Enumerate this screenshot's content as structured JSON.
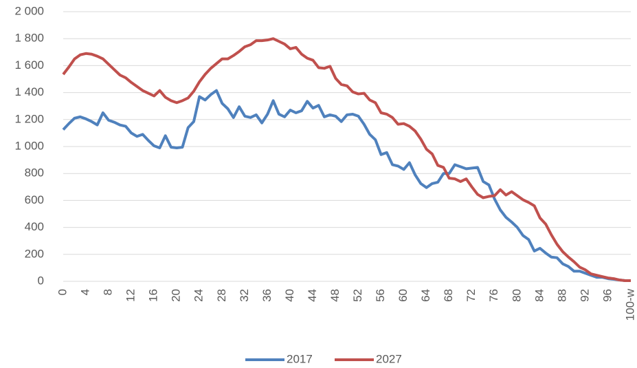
{
  "chart_data": {
    "type": "line",
    "categories": [
      "0",
      null,
      null,
      null,
      "4",
      null,
      null,
      null,
      "8",
      null,
      null,
      null,
      "12",
      null,
      null,
      null,
      "16",
      null,
      null,
      null,
      "20",
      null,
      null,
      null,
      "24",
      null,
      null,
      null,
      "28",
      null,
      null,
      null,
      "32",
      null,
      null,
      null,
      "36",
      null,
      null,
      null,
      "40",
      null,
      null,
      null,
      "44",
      null,
      null,
      null,
      "48",
      null,
      null,
      null,
      "52",
      null,
      null,
      null,
      "56",
      null,
      null,
      null,
      "60",
      null,
      null,
      null,
      "64",
      null,
      null,
      null,
      "68",
      null,
      null,
      null,
      "72",
      null,
      null,
      null,
      "76",
      null,
      null,
      null,
      "80",
      null,
      null,
      null,
      "84",
      null,
      null,
      null,
      "88",
      null,
      null,
      null,
      "92",
      null,
      null,
      null,
      "96",
      null,
      null,
      null,
      "100-w"
    ],
    "series": [
      {
        "name": "2017",
        "color": "#4f81bd",
        "values": [
          1125,
          1170,
          1210,
          1220,
          1205,
          1185,
          1160,
          1250,
          1195,
          1180,
          1160,
          1150,
          1100,
          1075,
          1090,
          1045,
          1005,
          990,
          1080,
          995,
          990,
          995,
          1140,
          1185,
          1370,
          1345,
          1385,
          1415,
          1320,
          1280,
          1215,
          1295,
          1225,
          1215,
          1235,
          1175,
          1240,
          1340,
          1240,
          1220,
          1270,
          1250,
          1265,
          1335,
          1285,
          1305,
          1220,
          1235,
          1225,
          1185,
          1235,
          1240,
          1225,
          1165,
          1090,
          1050,
          940,
          955,
          865,
          855,
          830,
          880,
          790,
          725,
          695,
          725,
          735,
          800,
          800,
          865,
          850,
          835,
          840,
          845,
          740,
          715,
          610,
          530,
          475,
          440,
          400,
          340,
          310,
          225,
          245,
          210,
          180,
          175,
          130,
          110,
          75,
          75,
          60,
          45,
          30,
          30,
          20,
          15,
          10,
          5,
          5
        ]
      },
      {
        "name": "2027",
        "color": "#c0504d",
        "values": [
          1535,
          1590,
          1650,
          1680,
          1690,
          1685,
          1670,
          1650,
          1610,
          1570,
          1530,
          1510,
          1475,
          1445,
          1415,
          1395,
          1375,
          1415,
          1365,
          1340,
          1325,
          1340,
          1360,
          1410,
          1480,
          1535,
          1580,
          1615,
          1650,
          1650,
          1675,
          1705,
          1740,
          1755,
          1785,
          1785,
          1790,
          1800,
          1780,
          1760,
          1725,
          1735,
          1685,
          1655,
          1640,
          1585,
          1580,
          1595,
          1505,
          1460,
          1450,
          1405,
          1390,
          1395,
          1345,
          1325,
          1250,
          1240,
          1215,
          1165,
          1170,
          1150,
          1115,
          1055,
          980,
          945,
          860,
          845,
          765,
          760,
          740,
          760,
          700,
          645,
          620,
          630,
          635,
          680,
          640,
          665,
          635,
          605,
          585,
          560,
          470,
          425,
          345,
          275,
          220,
          180,
          145,
          105,
          85,
          55,
          45,
          35,
          25,
          20,
          10,
          5,
          5
        ]
      }
    ],
    "ylim": [
      0,
      2000
    ],
    "yticks": [
      0,
      200,
      400,
      600,
      800,
      {
        "value": 1000,
        "label": "1 000"
      },
      {
        "value": 1200,
        "label": "1 200"
      },
      {
        "value": 1400,
        "label": "1 400"
      },
      {
        "value": 1600,
        "label": "1 600"
      },
      {
        "value": 1800,
        "label": "1 800"
      },
      {
        "value": 2000,
        "label": "2 000"
      }
    ],
    "grid": true
  }
}
